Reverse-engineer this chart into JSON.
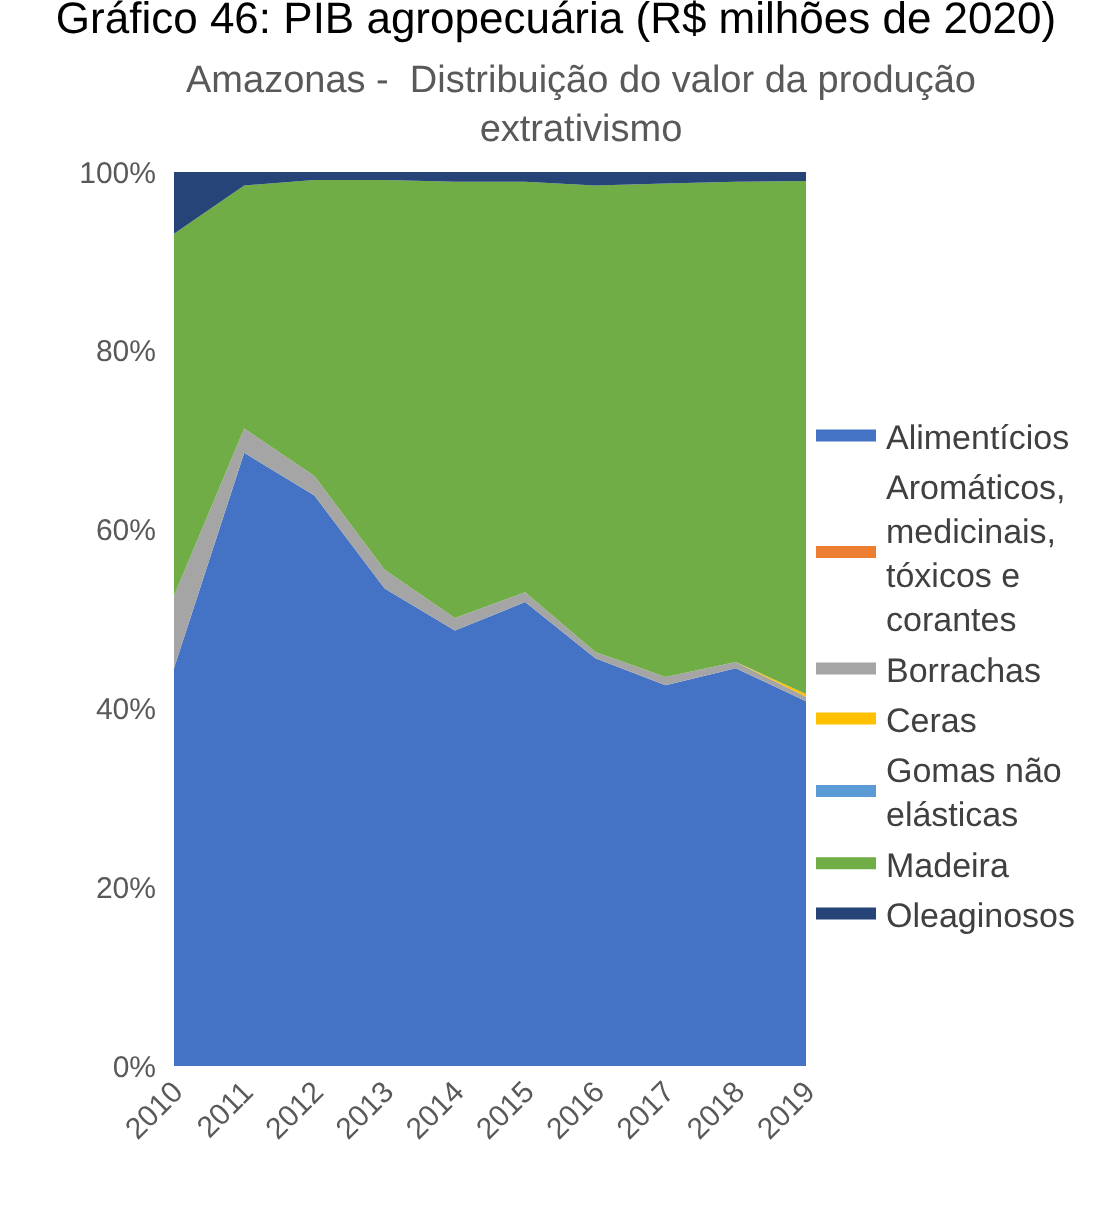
{
  "chart_data": {
    "type": "area",
    "title": "Gráfico 46: PIB agropecuária (R$ milhões de 2020)",
    "subtitle": "Amazonas -  Distribuição do valor da produção extrativismo",
    "categories": [
      "2010",
      "2011",
      "2012",
      "2013",
      "2014",
      "2015",
      "2016",
      "2017",
      "2018",
      "2019"
    ],
    "stacked": true,
    "ylim": [
      0,
      100
    ],
    "yticks": [
      {
        "value": 0,
        "label": "0%"
      },
      {
        "value": 20,
        "label": "20%"
      },
      {
        "value": 40,
        "label": "40%"
      },
      {
        "value": 60,
        "label": "60%"
      },
      {
        "value": 80,
        "label": "80%"
      },
      {
        "value": 100,
        "label": "100%"
      }
    ],
    "legend": "right",
    "series": [
      {
        "name": "Alimentícios",
        "color": "#4472c4",
        "values": [
          44.5,
          68.6,
          63.8,
          53.4,
          48.7,
          51.9,
          45.6,
          42.6,
          44.5,
          40.8
        ]
      },
      {
        "name": "Aromáticos, medicinais, tóxicos e corantes",
        "color": "#ed7d31",
        "values": [
          null,
          null,
          null,
          null,
          null,
          null,
          null,
          null,
          null,
          null
        ]
      },
      {
        "name": "Borrachas",
        "color": "#a5a5a5",
        "values": [
          8.1,
          2.7,
          2.2,
          2.1,
          1.4,
          1.1,
          0.7,
          0.9,
          0.7,
          0.5
        ]
      },
      {
        "name": "Ceras",
        "color": "#ffc000",
        "values": [
          0,
          0,
          0,
          0,
          0,
          0,
          0,
          0,
          0,
          0.3
        ]
      },
      {
        "name": "Gomas não elásticas",
        "color": "#5b9bd5",
        "values": [
          null,
          null,
          null,
          null,
          null,
          null,
          null,
          null,
          null,
          null
        ]
      },
      {
        "name": "Madeira",
        "color": "#70ad47",
        "values": [
          40.5,
          27.2,
          33.1,
          43.6,
          48.8,
          45.9,
          52.2,
          55.2,
          53.7,
          57.4
        ]
      },
      {
        "name": "Oleaginosos",
        "color": "#264478",
        "values": [
          6.9,
          1.5,
          0.9,
          0.9,
          1.1,
          1.1,
          1.5,
          1.3,
          1.1,
          1.0
        ]
      }
    ]
  }
}
